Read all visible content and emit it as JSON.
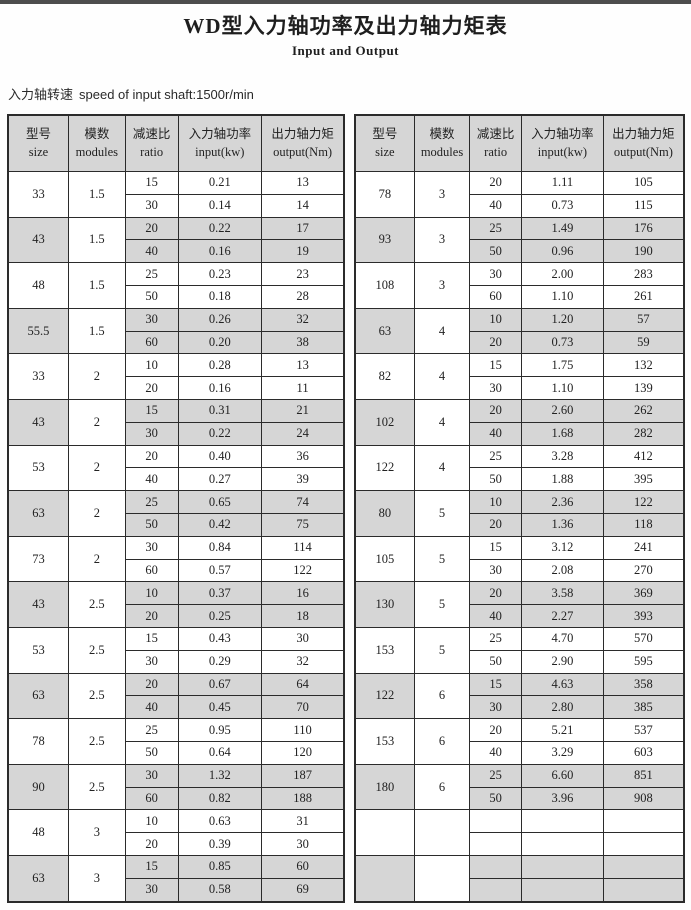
{
  "page": {
    "title": "WD型入力轴功率及出力轴力矩表",
    "subtitle": "Input and Output",
    "speed_label_cn": "入力轴转速",
    "speed_label_en": "speed of input shaft:1500r/min"
  },
  "colors": {
    "row_shade": "#d6d6d6",
    "header_shade": "#d6d6d6",
    "border": "#2b2b2b",
    "top_bar": "#4d4d4d"
  },
  "headers": {
    "size_cn": "型号",
    "size_en": "size",
    "modules_cn": "模数",
    "modules_en": "modules",
    "ratio_cn": "减速比",
    "ratio_en": "ratio",
    "input_cn": "入力轴功率",
    "input_en": "input(kw)",
    "output_cn": "出力轴力矩",
    "output_en": "output(Nm)"
  },
  "left_table": {
    "groups": [
      {
        "size": "33",
        "modules": "1.5",
        "rows": [
          [
            "15",
            "0.21",
            "13"
          ],
          [
            "30",
            "0.14",
            "14"
          ]
        ]
      },
      {
        "size": "43",
        "modules": "1.5",
        "rows": [
          [
            "20",
            "0.22",
            "17"
          ],
          [
            "40",
            "0.16",
            "19"
          ]
        ]
      },
      {
        "size": "48",
        "modules": "1.5",
        "rows": [
          [
            "25",
            "0.23",
            "23"
          ],
          [
            "50",
            "0.18",
            "28"
          ]
        ]
      },
      {
        "size": "55.5",
        "modules": "1.5",
        "rows": [
          [
            "30",
            "0.26",
            "32"
          ],
          [
            "60",
            "0.20",
            "38"
          ]
        ]
      },
      {
        "size": "33",
        "modules": "2",
        "rows": [
          [
            "10",
            "0.28",
            "13"
          ],
          [
            "20",
            "0.16",
            "11"
          ]
        ]
      },
      {
        "size": "43",
        "modules": "2",
        "rows": [
          [
            "15",
            "0.31",
            "21"
          ],
          [
            "30",
            "0.22",
            "24"
          ]
        ]
      },
      {
        "size": "53",
        "modules": "2",
        "rows": [
          [
            "20",
            "0.40",
            "36"
          ],
          [
            "40",
            "0.27",
            "39"
          ]
        ]
      },
      {
        "size": "63",
        "modules": "2",
        "rows": [
          [
            "25",
            "0.65",
            "74"
          ],
          [
            "50",
            "0.42",
            "75"
          ]
        ]
      },
      {
        "size": "73",
        "modules": "2",
        "rows": [
          [
            "30",
            "0.84",
            "114"
          ],
          [
            "60",
            "0.57",
            "122"
          ]
        ]
      },
      {
        "size": "43",
        "modules": "2.5",
        "rows": [
          [
            "10",
            "0.37",
            "16"
          ],
          [
            "20",
            "0.25",
            "18"
          ]
        ]
      },
      {
        "size": "53",
        "modules": "2.5",
        "rows": [
          [
            "15",
            "0.43",
            "30"
          ],
          [
            "30",
            "0.29",
            "32"
          ]
        ]
      },
      {
        "size": "63",
        "modules": "2.5",
        "rows": [
          [
            "20",
            "0.67",
            "64"
          ],
          [
            "40",
            "0.45",
            "70"
          ]
        ]
      },
      {
        "size": "78",
        "modules": "2.5",
        "rows": [
          [
            "25",
            "0.95",
            "110"
          ],
          [
            "50",
            "0.64",
            "120"
          ]
        ]
      },
      {
        "size": "90",
        "modules": "2.5",
        "rows": [
          [
            "30",
            "1.32",
            "187"
          ],
          [
            "60",
            "0.82",
            "188"
          ]
        ]
      },
      {
        "size": "48",
        "modules": "3",
        "rows": [
          [
            "10",
            "0.63",
            "31"
          ],
          [
            "20",
            "0.39",
            "30"
          ]
        ]
      },
      {
        "size": "63",
        "modules": "3",
        "rows": [
          [
            "15",
            "0.85",
            "60"
          ],
          [
            "30",
            "0.58",
            "69"
          ]
        ]
      }
    ]
  },
  "right_table": {
    "groups": [
      {
        "size": "78",
        "modules": "3",
        "rows": [
          [
            "20",
            "1.11",
            "105"
          ],
          [
            "40",
            "0.73",
            "115"
          ]
        ]
      },
      {
        "size": "93",
        "modules": "3",
        "rows": [
          [
            "25",
            "1.49",
            "176"
          ],
          [
            "50",
            "0.96",
            "190"
          ]
        ]
      },
      {
        "size": "108",
        "modules": "3",
        "rows": [
          [
            "30",
            "2.00",
            "283"
          ],
          [
            "60",
            "1.10",
            "261"
          ]
        ]
      },
      {
        "size": "63",
        "modules": "4",
        "rows": [
          [
            "10",
            "1.20",
            "57"
          ],
          [
            "20",
            "0.73",
            "59"
          ]
        ]
      },
      {
        "size": "82",
        "modules": "4",
        "rows": [
          [
            "15",
            "1.75",
            "132"
          ],
          [
            "30",
            "1.10",
            "139"
          ]
        ]
      },
      {
        "size": "102",
        "modules": "4",
        "rows": [
          [
            "20",
            "2.60",
            "262"
          ],
          [
            "40",
            "1.68",
            "282"
          ]
        ]
      },
      {
        "size": "122",
        "modules": "4",
        "rows": [
          [
            "25",
            "3.28",
            "412"
          ],
          [
            "50",
            "1.88",
            "395"
          ]
        ]
      },
      {
        "size": "80",
        "modules": "5",
        "rows": [
          [
            "10",
            "2.36",
            "122"
          ],
          [
            "20",
            "1.36",
            "118"
          ]
        ]
      },
      {
        "size": "105",
        "modules": "5",
        "rows": [
          [
            "15",
            "3.12",
            "241"
          ],
          [
            "30",
            "2.08",
            "270"
          ]
        ]
      },
      {
        "size": "130",
        "modules": "5",
        "rows": [
          [
            "20",
            "3.58",
            "369"
          ],
          [
            "40",
            "2.27",
            "393"
          ]
        ]
      },
      {
        "size": "153",
        "modules": "5",
        "rows": [
          [
            "25",
            "4.70",
            "570"
          ],
          [
            "50",
            "2.90",
            "595"
          ]
        ]
      },
      {
        "size": "122",
        "modules": "6",
        "rows": [
          [
            "15",
            "4.63",
            "358"
          ],
          [
            "30",
            "2.80",
            "385"
          ]
        ]
      },
      {
        "size": "153",
        "modules": "6",
        "rows": [
          [
            "20",
            "5.21",
            "537"
          ],
          [
            "40",
            "3.29",
            "603"
          ]
        ]
      },
      {
        "size": "180",
        "modules": "6",
        "rows": [
          [
            "25",
            "6.60",
            "851"
          ],
          [
            "50",
            "3.96",
            "908"
          ]
        ]
      },
      {
        "size": "",
        "modules": "",
        "rows": [
          [
            "",
            "",
            ""
          ],
          [
            "",
            "",
            ""
          ]
        ]
      },
      {
        "size": "",
        "modules": "",
        "rows": [
          [
            "",
            "",
            ""
          ],
          [
            "",
            "",
            ""
          ]
        ]
      }
    ]
  }
}
